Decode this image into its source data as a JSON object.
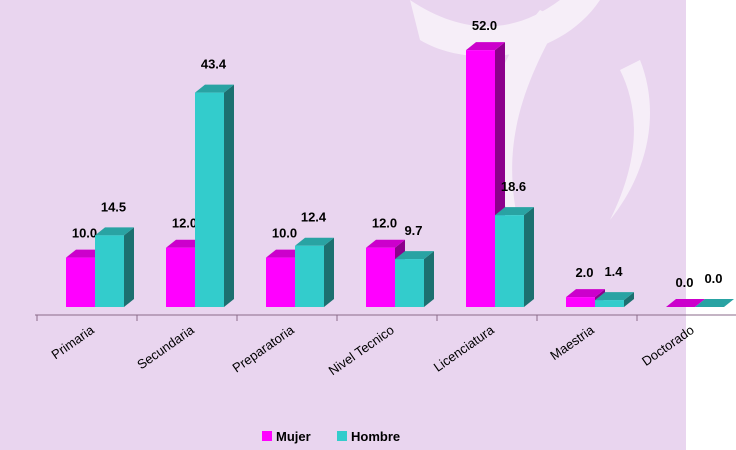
{
  "chart_data": {
    "type": "bar3d",
    "categories": [
      "Primaria",
      "Secundaria",
      "Preparatoria",
      "Nivel Tecnico",
      "Licenciatura",
      "Maestria",
      "Doctorado"
    ],
    "series": [
      {
        "name": "Mujer",
        "color": "#ff00ff",
        "values": [
          10.0,
          12.0,
          10.0,
          12.0,
          52.0,
          2.0,
          0.0
        ],
        "value_labels": [
          "10.0",
          "12.0",
          "10.0",
          "12.0",
          "52.0",
          "2.0",
          "0.0"
        ]
      },
      {
        "name": "Hombre",
        "color": "#33cccc",
        "values": [
          14.5,
          43.4,
          12.4,
          9.7,
          18.6,
          1.4,
          0.0
        ],
        "value_labels": [
          "14.5",
          "43.4",
          "12.4",
          "9.7",
          "18.6",
          "1.4",
          "0.0"
        ]
      }
    ],
    "legend": "bottom"
  }
}
